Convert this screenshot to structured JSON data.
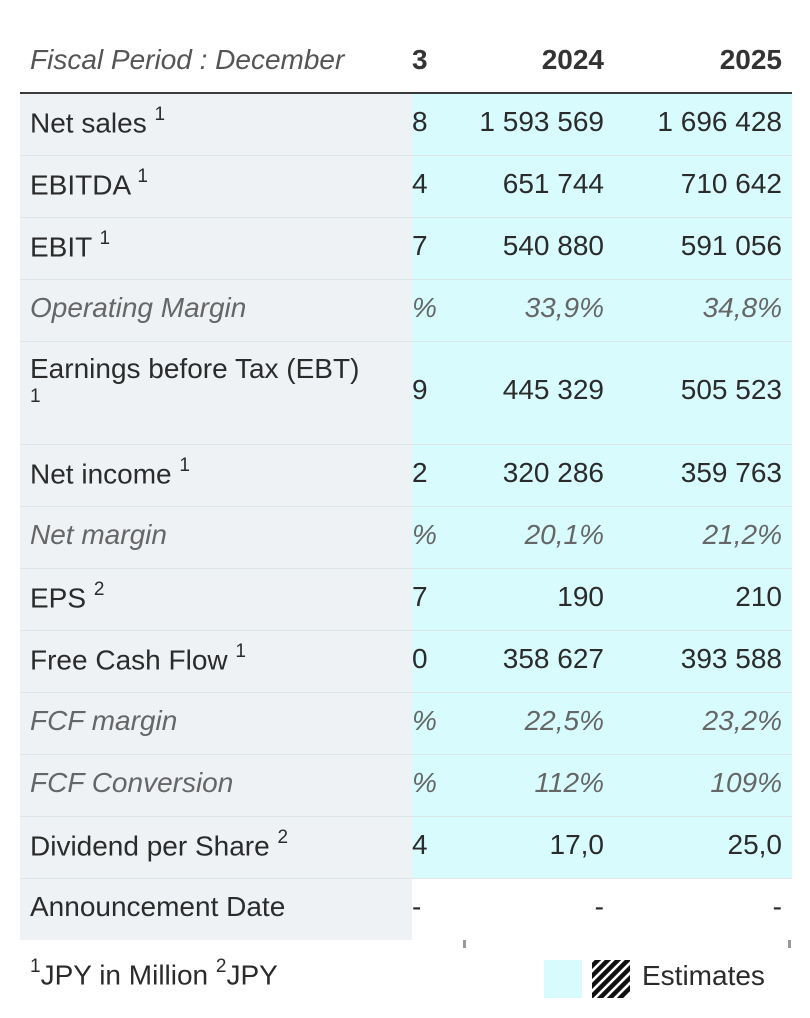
{
  "header": {
    "label": "Fiscal Period : December",
    "col0": "3",
    "col1": "2024",
    "col2": "2025"
  },
  "rows": [
    {
      "label": "Net sales",
      "sup": "1",
      "c0": "8",
      "c1": "1 593 569",
      "c2": "1 696 428"
    },
    {
      "label": "EBITDA",
      "sup": "1",
      "c0": "4",
      "c1": "651 744",
      "c2": "710 642"
    },
    {
      "label": "EBIT",
      "sup": "1",
      "c0": "7",
      "c1": "540 880",
      "c2": "591 056"
    },
    {
      "label": "Operating Margin",
      "sup": "",
      "c0": "%",
      "c1": "33,9%",
      "c2": "34,8%"
    },
    {
      "label": "Earnings before Tax (EBT)",
      "sup": "1",
      "c0": "9",
      "c1": "445 329",
      "c2": "505 523"
    },
    {
      "label": "Net income",
      "sup": "1",
      "c0": "2",
      "c1": "320 286",
      "c2": "359 763"
    },
    {
      "label": "Net margin",
      "sup": "",
      "c0": "%",
      "c1": "20,1%",
      "c2": "21,2%"
    },
    {
      "label": "EPS",
      "sup": "2",
      "c0": "7",
      "c1": "190",
      "c2": "210"
    },
    {
      "label": "Free Cash Flow",
      "sup": "1",
      "c0": "0",
      "c1": "358 627",
      "c2": "393 588"
    },
    {
      "label": "FCF margin",
      "sup": "",
      "c0": "%",
      "c1": "22,5%",
      "c2": "23,2%"
    },
    {
      "label": "FCF Conversion",
      "sup": "",
      "c0": "%",
      "c1": "112%",
      "c2": "109%"
    },
    {
      "label": "Dividend per Share",
      "sup": "2",
      "c0": "4",
      "c1": "17,0",
      "c2": "25,0"
    },
    {
      "label": "Announcement Date",
      "sup": "",
      "c0": "-",
      "c1": "-",
      "c2": "-"
    }
  ],
  "footer": {
    "sup1": "1",
    "unit1": "JPY in Million",
    "sup2": "2",
    "unit2": "JPY",
    "legend_label": "Estimates"
  },
  "colors": {
    "estimate_bg": "#d8fbfd",
    "label_bg": "#eef2f5"
  }
}
